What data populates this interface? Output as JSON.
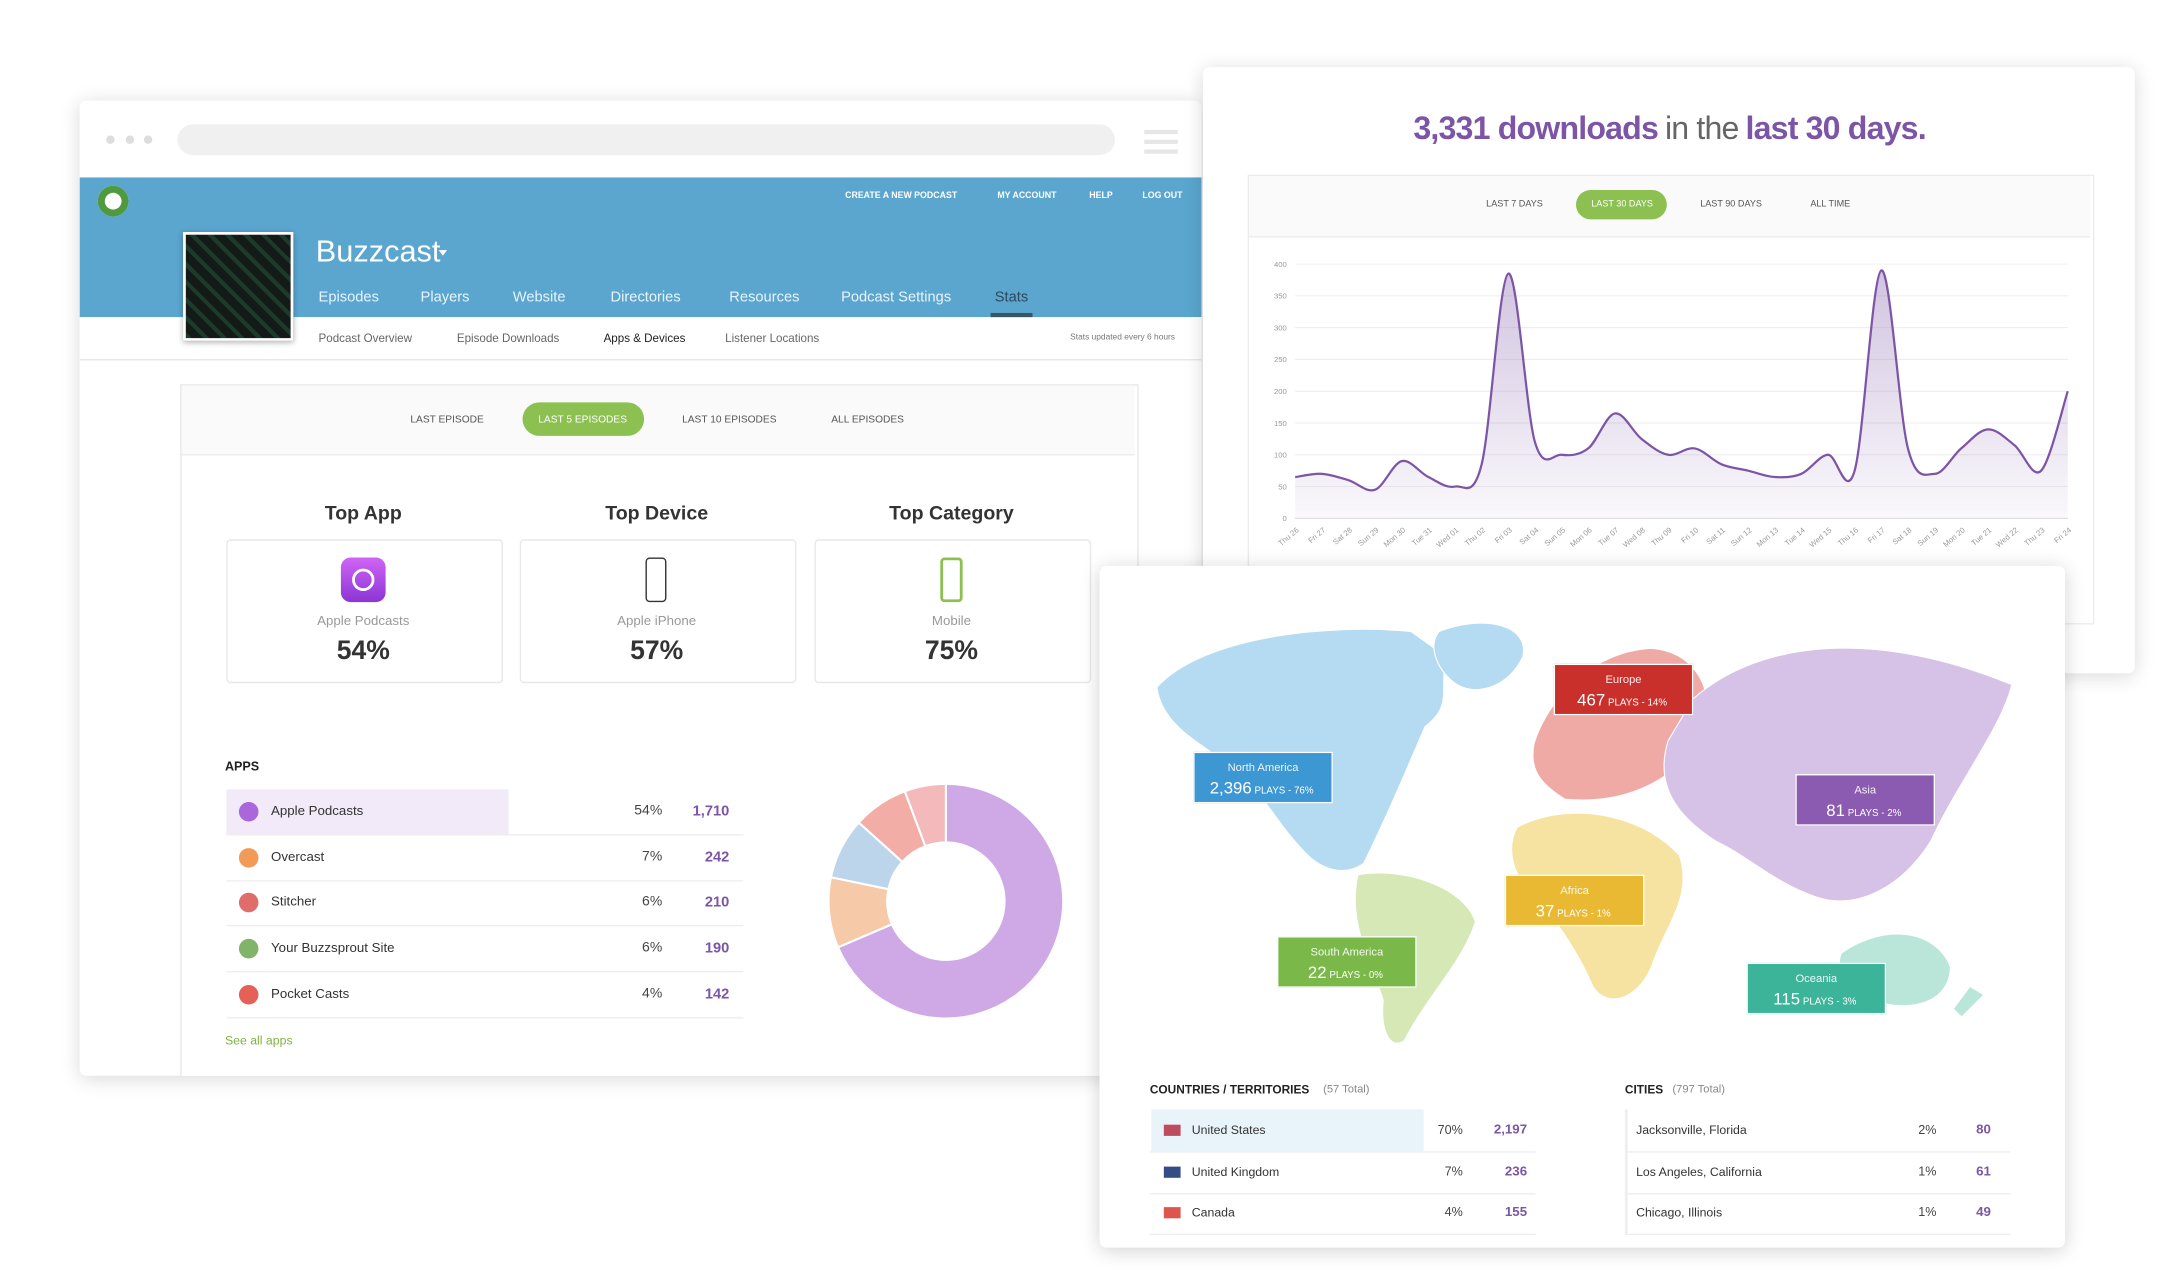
{
  "browser": {
    "nav": [
      "CREATE A NEW PODCAST",
      "MY ACCOUNT",
      "HELP",
      "LOG OUT"
    ],
    "podcast": "Buzzcast",
    "tabs": [
      "Episodes",
      "Players",
      "Website",
      "Directories",
      "Resources",
      "Podcast Settings",
      "Stats"
    ],
    "subtabs": [
      "Podcast Overview",
      "Episode Downloads",
      "Apps & Devices",
      "Listener Locations"
    ],
    "stats_note": "Stats updated every 6 hours",
    "ranges": [
      "LAST EPISODE",
      "LAST 5 EPISODES",
      "LAST 10 EPISODES",
      "ALL EPISODES"
    ],
    "top": [
      {
        "heading": "Top App",
        "name": "Apple Podcasts",
        "value": "54%"
      },
      {
        "heading": "Top Device",
        "name": "Apple iPhone",
        "value": "57%"
      },
      {
        "heading": "Top Category",
        "name": "Mobile",
        "value": "75%"
      }
    ],
    "apps": {
      "title": "APPS",
      "rows": [
        {
          "name": "Apple Podcasts",
          "pct": "54%",
          "plays": 1710,
          "plays_label": "1,710"
        },
        {
          "name": "Overcast",
          "pct": "7%",
          "plays": 242,
          "plays_label": "242"
        },
        {
          "name": "Stitcher",
          "pct": "6%",
          "plays": 210,
          "plays_label": "210"
        },
        {
          "name": "Your Buzzsprout Site",
          "pct": "6%",
          "plays": 190,
          "plays_label": "190"
        },
        {
          "name": "Pocket Casts",
          "pct": "4%",
          "plays": 142,
          "plays_label": "142"
        }
      ],
      "colors": [
        "#cfa9e6",
        "#f6c9a8",
        "#bcd5ea",
        "#f2aea6",
        "#f4b9bb"
      ],
      "see_all": "See all apps"
    }
  },
  "downloads": {
    "count": "3,331 downloads",
    "mid": "in the",
    "period": "last 30 days.",
    "ranges": [
      "LAST 7 DAYS",
      "LAST 30 DAYS",
      "LAST 90 DAYS",
      "ALL TIME"
    ]
  },
  "chart_data": {
    "type": "line",
    "categories": [
      "Thu 26",
      "Fri 27",
      "Sat 28",
      "Sun 29",
      "Mon 30",
      "Tue 31",
      "Wed 01",
      "Thu 02",
      "Fri 03",
      "Sat 04",
      "Sun 05",
      "Mon 06",
      "Tue 07",
      "Wed 08",
      "Thu 09",
      "Fri 10",
      "Sat 11",
      "Sun 12",
      "Mon 13",
      "Tue 14",
      "Wed 15",
      "Thu 16",
      "Fri 17",
      "Sat 18",
      "Sun 19",
      "Mon 20",
      "Tue 21",
      "Wed 22",
      "Thu 23",
      "Fri 24"
    ],
    "values": [
      65,
      70,
      60,
      45,
      90,
      65,
      50,
      85,
      385,
      120,
      100,
      110,
      165,
      125,
      100,
      110,
      85,
      75,
      65,
      70,
      100,
      75,
      390,
      110,
      70,
      110,
      140,
      115,
      75,
      200
    ],
    "color": "#7d55a6",
    "ylim": [
      0,
      400
    ],
    "yticks": [
      0,
      50,
      100,
      150,
      200,
      250,
      300,
      350,
      400
    ],
    "grid": true
  },
  "map": {
    "regions": [
      {
        "name": "Europe",
        "plays": "467",
        "share": "PLAYS - 14%"
      },
      {
        "name": "North America",
        "plays": "2,396",
        "share": "PLAYS - 76%"
      },
      {
        "name": "Asia",
        "plays": "81",
        "share": "PLAYS - 2%"
      },
      {
        "name": "Africa",
        "plays": "37",
        "share": "PLAYS - 1%"
      },
      {
        "name": "South America",
        "plays": "22",
        "share": "PLAYS - 0%"
      },
      {
        "name": "Oceania",
        "plays": "115",
        "share": "PLAYS - 3%"
      }
    ],
    "countries": {
      "title": "COUNTRIES / TERRITORIES",
      "total": "(57 Total)",
      "rows": [
        {
          "name": "United States",
          "pct": "70%",
          "plays": "2,197"
        },
        {
          "name": "United Kingdom",
          "pct": "7%",
          "plays": "236"
        },
        {
          "name": "Canada",
          "pct": "4%",
          "plays": "155"
        }
      ]
    },
    "cities": {
      "title": "CITIES",
      "total": "(797 Total)",
      "rows": [
        {
          "name": "Jacksonville, Florida",
          "pct": "2%",
          "plays": "80"
        },
        {
          "name": "Los Angeles, California",
          "pct": "1%",
          "plays": "61"
        },
        {
          "name": "Chicago, Illinois",
          "pct": "1%",
          "plays": "49"
        }
      ]
    }
  }
}
